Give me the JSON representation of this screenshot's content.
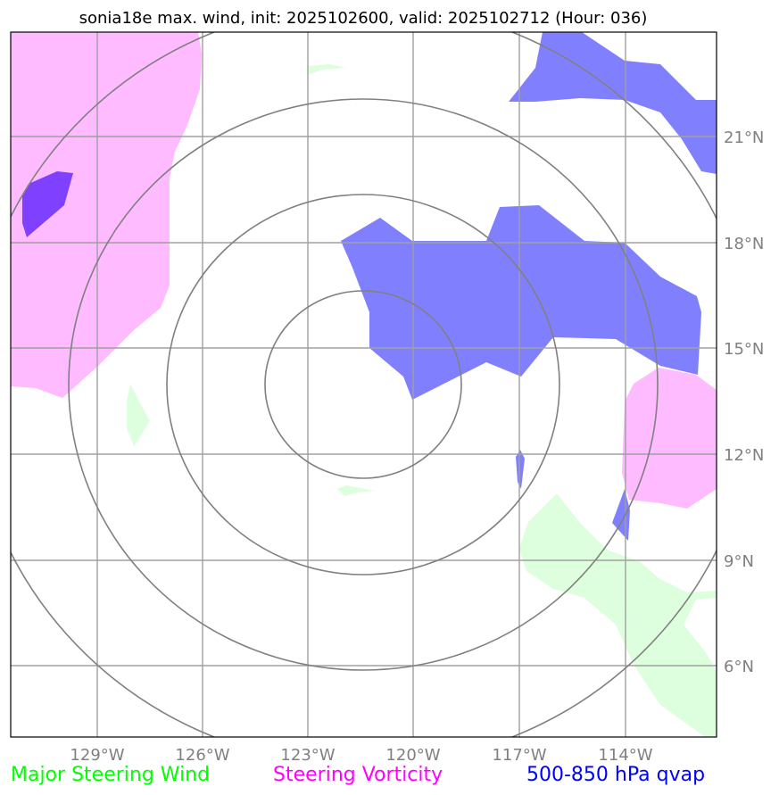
{
  "title": "sonia18e max. wind, init: 2025102600, valid: 2025102712 (Hour: 036)",
  "lon_labels": [
    "129°W",
    "126°W",
    "123°W",
    "120°W",
    "117°W",
    "114°W"
  ],
  "lat_labels": [
    "21°N",
    "18°N",
    "15°N",
    "12°N",
    "9°N",
    "6°N"
  ],
  "legend": [
    {
      "label": "Major Steering Wind",
      "color": "#00ff00"
    },
    {
      "label": "Steering Vorticity",
      "color": "#ff00ff"
    },
    {
      "label": "500-850 hPa qvap",
      "color": "#0000ff"
    }
  ],
  "colors": {
    "steering_wind_fill": "#ddffdd",
    "vorticity_fill": "#ffbbff",
    "qvap_fill": "#8080ff",
    "qvap_dark_fill": "#8040ff",
    "grid": "#a0a0a0",
    "range_rings": "#808080"
  }
}
